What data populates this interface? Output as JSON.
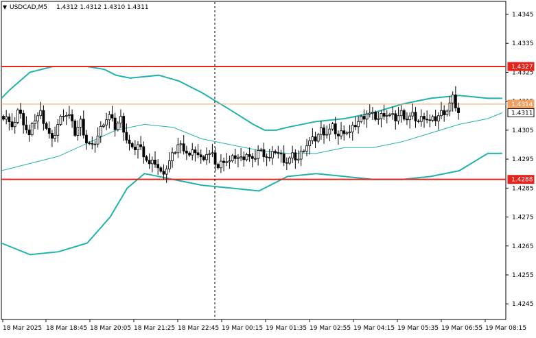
{
  "header": {
    "symbol": "USDCAD,M5",
    "ohlc": "1.4312 1.4312 1.4310 1.4311",
    "indicator_arrow": "▼"
  },
  "colors": {
    "background": "#ffffff",
    "candle": "#000000",
    "bands": "#20b2aa",
    "resistance": "#e8231a",
    "current_line": "#f0a060",
    "price_tag": "#e8231a",
    "grid_line": "#000000"
  },
  "chart_data": {
    "type": "candlestick",
    "y_ticks": [
      "1.4345",
      "1.4335",
      "1.4325",
      "1.4315",
      "1.4305",
      "1.4295",
      "1.4285",
      "1.4275",
      "1.4265",
      "1.4255",
      "1.4245"
    ],
    "y_tick_values": [
      1.4345,
      1.4335,
      1.4325,
      1.4315,
      1.4305,
      1.4295,
      1.4285,
      1.4275,
      1.4265,
      1.4255,
      1.4245
    ],
    "ylim": [
      1.42396,
      1.43495
    ],
    "x_ticks": [
      "18 Mar 2025",
      "18 Mar 18:45",
      "18 Mar 20:05",
      "18 Mar 21:25",
      "18 Mar 22:45",
      "19 Mar 00:15",
      "19 Mar 01:35",
      "19 Mar 02:55",
      "19 Mar 04:15",
      "19 Mar 05:35",
      "19 Mar 06:55",
      "19 Mar 08:15"
    ],
    "horizontal_levels": [
      {
        "label": "1.4327",
        "value": 1.4327,
        "style": "resistance"
      },
      {
        "label": "1.4314",
        "value": 1.4314,
        "style": "current"
      },
      {
        "label": "1.4311",
        "value": 1.4311,
        "style": "last"
      },
      {
        "label": "1.4288",
        "value": 1.4288,
        "style": "resistance"
      }
    ],
    "vertical_marker_label": "18 Mar 22:45",
    "close_series": [
      1.431,
      1.4305,
      1.4312,
      1.4308,
      1.4303,
      1.4309,
      1.4311,
      1.4306,
      1.4301,
      1.4307,
      1.4311,
      1.431,
      1.4304,
      1.4308,
      1.4301,
      1.4299,
      1.4303,
      1.4308,
      1.431,
      1.4306,
      1.4309,
      1.4302,
      1.4298,
      1.43,
      1.4297,
      1.4293,
      1.4294,
      1.429,
      1.4292,
      1.4296,
      1.43,
      1.4299,
      1.4296,
      1.4298,
      1.4295,
      1.4297,
      1.4296,
      1.4292,
      1.4295,
      1.4294,
      1.4296,
      1.4295,
      1.4297,
      1.4294,
      1.4298,
      1.4297,
      1.4295,
      1.4298,
      1.4296,
      1.4294,
      1.4296,
      1.4295,
      1.4299,
      1.4301,
      1.4302,
      1.4305,
      1.4304,
      1.4306,
      1.4303,
      1.4305,
      1.4304,
      1.4307,
      1.4309,
      1.4311,
      1.431,
      1.4309,
      1.4311,
      1.431,
      1.4309,
      1.4311,
      1.4309,
      1.431,
      1.4308,
      1.431,
      1.4308,
      1.4309,
      1.4311,
      1.4312,
      1.4316,
      1.4311
    ],
    "bollinger": {
      "upper": [
        [
          0,
          1.4316
        ],
        [
          3,
          1.4319
        ],
        [
          10,
          1.4325
        ],
        [
          18,
          1.4327
        ],
        [
          30,
          1.4327
        ],
        [
          36,
          1.4326
        ],
        [
          40,
          1.4324
        ],
        [
          45,
          1.4323
        ],
        [
          55,
          1.4324
        ],
        [
          62,
          1.4322
        ],
        [
          70,
          1.4318
        ],
        [
          80,
          1.4312
        ],
        [
          88,
          1.4307
        ],
        [
          92,
          1.4305
        ],
        [
          96,
          1.4305
        ],
        [
          100,
          1.4306
        ],
        [
          110,
          1.4308
        ],
        [
          120,
          1.4309
        ],
        [
          130,
          1.4311
        ],
        [
          140,
          1.4314
        ],
        [
          150,
          1.4316
        ],
        [
          160,
          1.4317
        ],
        [
          170,
          1.4316
        ],
        [
          175,
          1.4316
        ]
      ],
      "middle": [
        [
          0,
          1.4291
        ],
        [
          20,
          1.4296
        ],
        [
          40,
          1.4305
        ],
        [
          50,
          1.4307
        ],
        [
          60,
          1.4306
        ],
        [
          70,
          1.4302
        ],
        [
          80,
          1.43
        ],
        [
          90,
          1.4298
        ],
        [
          100,
          1.4297
        ],
        [
          110,
          1.4297
        ],
        [
          120,
          1.4299
        ],
        [
          130,
          1.4299
        ],
        [
          140,
          1.4301
        ],
        [
          150,
          1.4304
        ],
        [
          160,
          1.4307
        ],
        [
          170,
          1.4309
        ],
        [
          175,
          1.4311
        ]
      ],
      "lower": [
        [
          0,
          1.4266
        ],
        [
          10,
          1.4262
        ],
        [
          20,
          1.4263
        ],
        [
          30,
          1.4266
        ],
        [
          38,
          1.4275
        ],
        [
          44,
          1.4285
        ],
        [
          50,
          1.429
        ],
        [
          60,
          1.4288
        ],
        [
          70,
          1.4286
        ],
        [
          80,
          1.4285
        ],
        [
          90,
          1.4284
        ],
        [
          100,
          1.4289
        ],
        [
          110,
          1.429
        ],
        [
          120,
          1.4289
        ],
        [
          130,
          1.4288
        ],
        [
          140,
          1.4288
        ],
        [
          150,
          1.4289
        ],
        [
          160,
          1.4291
        ],
        [
          170,
          1.4297
        ],
        [
          175,
          1.4297
        ]
      ]
    }
  }
}
